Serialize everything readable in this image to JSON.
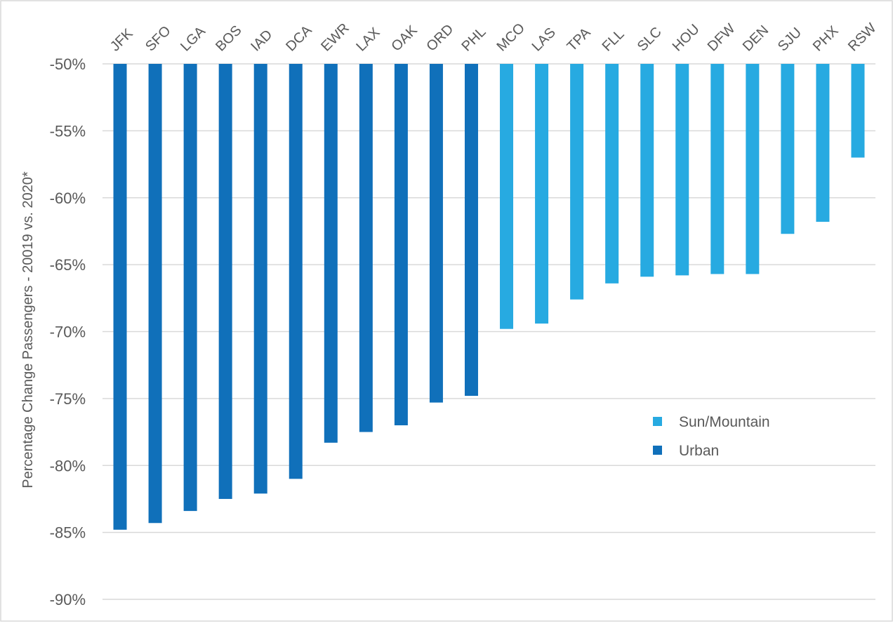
{
  "chart_data": {
    "type": "bar",
    "title": "",
    "xlabel": "",
    "ylabel": "Percentage Change  Passengers  - 20019 vs. 2020*",
    "ylim": [
      -90,
      -50
    ],
    "yticks": [
      -50,
      -55,
      -60,
      -65,
      -70,
      -75,
      -80,
      -85,
      -90
    ],
    "ytick_labels": [
      "-50%",
      "-55%",
      "-60%",
      "-65%",
      "-70%",
      "-75%",
      "-80%",
      "-85%",
      "-90%"
    ],
    "grid": true,
    "legend_position": "right-middle",
    "categories": [
      "JFK",
      "SFO",
      "LGA",
      "BOS",
      "IAD",
      "DCA",
      "EWR",
      "LAX",
      "OAK",
      "ORD",
      "PHL",
      "MCO",
      "LAS",
      "TPA",
      "FLL",
      "SLC",
      "HOU",
      "DFW",
      "DEN",
      "SJU",
      "PHX",
      "RSW"
    ],
    "series": [
      {
        "name": "Urban",
        "color": "#1070BA",
        "values": [
          -84.8,
          -84.3,
          -83.4,
          -82.5,
          -82.1,
          -81.0,
          -78.3,
          -77.5,
          -77.0,
          -75.3,
          -74.8,
          null,
          null,
          null,
          null,
          null,
          null,
          null,
          null,
          null,
          null,
          null
        ]
      },
      {
        "name": "Sun/Mountain",
        "color": "#27AAE1",
        "values": [
          null,
          null,
          null,
          null,
          null,
          null,
          null,
          null,
          null,
          null,
          null,
          -69.8,
          -69.4,
          -67.6,
          -66.4,
          -65.9,
          -65.8,
          -65.7,
          -65.7,
          -62.7,
          -61.8,
          -57.0
        ]
      }
    ],
    "legend": [
      "Sun/Mountain",
      "Urban"
    ]
  }
}
